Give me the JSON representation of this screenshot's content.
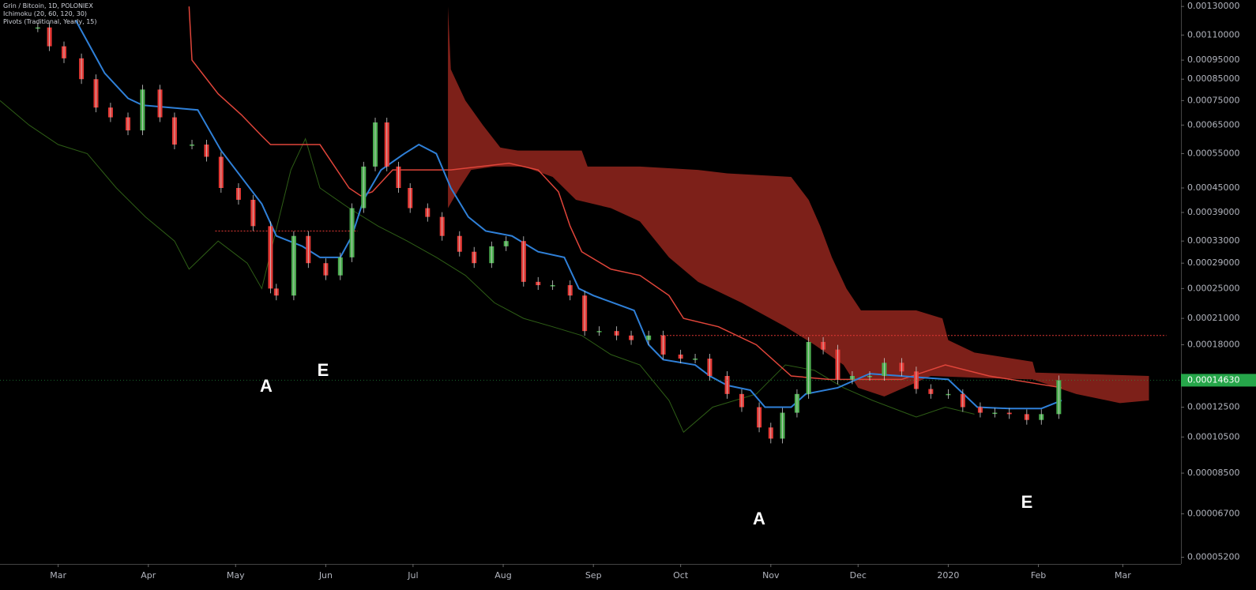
{
  "chart_data": {
    "type": "ichimoku",
    "legend": [
      "Grin / Bitcoin, 1D, POLONIEX",
      "Ichimoku (20, 60, 120, 30)",
      "Pivots (Traditional, Yearly, 15)"
    ],
    "yscale": "log",
    "xlim": [
      -20,
      386
    ],
    "ylim": [
      5e-05,
      0.00135
    ],
    "xticks": [
      {
        "value": 0,
        "label": "Mar"
      },
      {
        "value": 31,
        "label": "Apr"
      },
      {
        "value": 61,
        "label": "May"
      },
      {
        "value": 92,
        "label": "Jun"
      },
      {
        "value": 122,
        "label": "Jul"
      },
      {
        "value": 153,
        "label": "Aug"
      },
      {
        "value": 184,
        "label": "Sep"
      },
      {
        "value": 214,
        "label": "Oct"
      },
      {
        "value": 245,
        "label": "Nov"
      },
      {
        "value": 275,
        "label": "Dec"
      },
      {
        "value": 306,
        "label": "2020"
      },
      {
        "value": 337,
        "label": "Feb"
      },
      {
        "value": 366,
        "label": "Mar"
      }
    ],
    "yticks": [
      {
        "value": 0.0013,
        "label": "0.00130000"
      },
      {
        "value": 0.0011,
        "label": "0.00110000"
      },
      {
        "value": 0.00095,
        "label": "0.00095000"
      },
      {
        "value": 0.00085,
        "label": "0.00085000"
      },
      {
        "value": 0.00075,
        "label": "0.00075000"
      },
      {
        "value": 0.00065,
        "label": "0.00065000"
      },
      {
        "value": 0.00055,
        "label": "0.00055000"
      },
      {
        "value": 0.00045,
        "label": "0.00045000"
      },
      {
        "value": 0.00039,
        "label": "0.00039000"
      },
      {
        "value": 0.00033,
        "label": "0.00033000"
      },
      {
        "value": 0.00029,
        "label": "0.00029000"
      },
      {
        "value": 0.00025,
        "label": "0.00025000"
      },
      {
        "value": 0.00021,
        "label": "0.00021000"
      },
      {
        "value": 0.00018,
        "label": "0.00018000"
      },
      {
        "value": 0.000125,
        "label": "0.00012500"
      },
      {
        "value": 0.000105,
        "label": "0.00010500"
      },
      {
        "value": 8.5e-05,
        "label": "0.00008500"
      },
      {
        "value": 6.7e-05,
        "label": "0.00006700"
      },
      {
        "value": 5.2e-05,
        "label": "0.00005200"
      }
    ],
    "last_price": {
      "value": 0.0001463,
      "label": "0.00014630",
      "color": "#26a64a"
    },
    "price": {
      "up_color": "#4caf50",
      "down_color": "#e53935",
      "x": [
        -7,
        -3,
        2,
        8,
        13,
        18,
        24,
        29,
        35,
        40,
        46,
        51,
        56,
        62,
        67,
        73,
        75,
        81,
        86,
        92,
        97,
        101,
        105,
        109,
        113,
        117,
        121,
        127,
        132,
        138,
        143,
        149,
        154,
        160,
        165,
        170,
        176,
        181,
        186,
        192,
        197,
        203,
        208,
        214,
        219,
        224,
        230,
        235,
        241,
        245,
        249,
        254,
        258,
        263,
        268,
        273,
        279,
        284,
        290,
        295,
        300,
        306,
        311,
        317,
        322,
        327,
        333,
        338,
        344
      ],
      "values": [
        0.00115,
        0.00103,
        0.00096,
        0.00085,
        0.00072,
        0.00068,
        0.00063,
        0.0008,
        0.00068,
        0.00058,
        0.00058,
        0.00054,
        0.00045,
        0.00042,
        0.00036,
        0.00025,
        0.00024,
        0.00034,
        0.00029,
        0.00027,
        0.0003,
        0.0004,
        0.00051,
        0.00066,
        0.00051,
        0.00045,
        0.0004,
        0.00038,
        0.00034,
        0.00031,
        0.00029,
        0.00032,
        0.00033,
        0.00026,
        0.000255,
        0.000255,
        0.00024,
        0.000195,
        0.000195,
        0.00019,
        0.000185,
        0.00019,
        0.00017,
        0.000166,
        0.000166,
        0.00015,
        0.000135,
        0.000125,
        0.000111,
        0.000104,
        0.000121,
        0.000135,
        0.000183,
        0.000175,
        0.000147,
        0.00015,
        0.00015,
        0.000162,
        0.000154,
        0.000139,
        0.000135,
        0.000135,
        0.000125,
        0.000121,
        0.000121,
        0.00012,
        0.000116,
        0.00012,
        0.0001463
      ]
    },
    "series": [
      {
        "color": "#2f80d8",
        "width": 2,
        "x": [
          6,
          16,
          24,
          29,
          48,
          56,
          62,
          70,
          75,
          84,
          90,
          97,
          101,
          105,
          111,
          119,
          124,
          130,
          135,
          141,
          147,
          156,
          165,
          174,
          179,
          184,
          198,
          203,
          208,
          219,
          224,
          230,
          238,
          243,
          252,
          257,
          268,
          279,
          295,
          306,
          316,
          327,
          338,
          345
        ],
        "values": [
          0.0012,
          0.00088,
          0.00076,
          0.00073,
          0.00071,
          0.00056,
          0.00049,
          0.00041,
          0.00034,
          0.00032,
          0.0003,
          0.0003,
          0.00034,
          0.00042,
          0.0005,
          0.00055,
          0.00058,
          0.00055,
          0.00045,
          0.00038,
          0.00035,
          0.00034,
          0.00031,
          0.0003,
          0.00025,
          0.00024,
          0.00022,
          0.00018,
          0.000165,
          0.00016,
          0.00015,
          0.000142,
          0.000138,
          0.000125,
          0.000125,
          0.000135,
          0.00014,
          0.000152,
          0.000149,
          0.000147,
          0.000125,
          0.000124,
          0.000124,
          0.00013
        ]
      },
      {
        "color": "#e0453a",
        "width": 1.5,
        "x": [
          45,
          46,
          55,
          63,
          70,
          73,
          90,
          100,
          104,
          108,
          115,
          135,
          155,
          165,
          172,
          176,
          180,
          190,
          200,
          210,
          215,
          227,
          240,
          252,
          265,
          290,
          305,
          320,
          345
        ],
        "values": [
          0.0013,
          0.00095,
          0.00078,
          0.00069,
          0.00061,
          0.00058,
          0.00058,
          0.00045,
          0.00043,
          0.00044,
          0.0005,
          0.0005,
          0.00052,
          0.0005,
          0.00044,
          0.00036,
          0.00031,
          0.00028,
          0.00027,
          0.00024,
          0.00021,
          0.0002,
          0.00018,
          0.00015,
          0.000147,
          0.000147,
          0.00016,
          0.00015,
          0.00014
        ]
      },
      {
        "color": "#2e5e16",
        "width": 1,
        "x": [
          -20,
          -10,
          0,
          10,
          20,
          30,
          40,
          45,
          55,
          65,
          70,
          80,
          85,
          90,
          100,
          110,
          120,
          130,
          140,
          150,
          160,
          170,
          180,
          190,
          200,
          210,
          215,
          225,
          240,
          250,
          260,
          270,
          280,
          295,
          305,
          315
        ],
        "values": [
          0.00075,
          0.00065,
          0.00058,
          0.00055,
          0.00045,
          0.00038,
          0.00033,
          0.00028,
          0.00033,
          0.00029,
          0.00025,
          0.0005,
          0.0006,
          0.00045,
          0.0004,
          0.00036,
          0.00033,
          0.0003,
          0.00027,
          0.00023,
          0.00021,
          0.0002,
          0.00019,
          0.00017,
          0.00016,
          0.00013,
          0.000108,
          0.000125,
          0.000135,
          0.00016,
          0.000155,
          0.00014,
          0.00013,
          0.000118,
          0.000125,
          0.00012
        ]
      }
    ],
    "cloud": {
      "color": "#8b241c",
      "upper": {
        "x": [
          134,
          135,
          140,
          146,
          152,
          158,
          180,
          182,
          200,
          220,
          230,
          252,
          258,
          262,
          266,
          271,
          276,
          295,
          304,
          306,
          315,
          335,
          336,
          375
        ],
        "values": [
          0.0013,
          0.0009,
          0.00075,
          0.00065,
          0.00057,
          0.00056,
          0.00056,
          0.00051,
          0.00051,
          0.0005,
          0.00049,
          0.00048,
          0.00042,
          0.00036,
          0.0003,
          0.00025,
          0.00022,
          0.00022,
          0.00021,
          0.000185,
          0.000172,
          0.000163,
          0.000153,
          0.00015
        ]
      },
      "lower": {
        "x": [
          134,
          138,
          142,
          150,
          160,
          170,
          178,
          190,
          200,
          210,
          220,
          235,
          250,
          260,
          270,
          275,
          284,
          300,
          320,
          335,
          350,
          365,
          375
        ],
        "values": [
          0.0004,
          0.00045,
          0.0005,
          0.00051,
          0.00051,
          0.00048,
          0.00042,
          0.0004,
          0.00037,
          0.0003,
          0.00026,
          0.00023,
          0.0002,
          0.00018,
          0.00016,
          0.00014,
          0.000133,
          0.00015,
          0.000148,
          0.000147,
          0.000135,
          0.000128,
          0.00013
        ]
      }
    },
    "pivots": [
      {
        "value": 0.00035,
        "x": [
          54,
          103
        ],
        "color": "#e53935"
      },
      {
        "value": 0.00019,
        "x": [
          207,
          381
        ],
        "color": "#e53935"
      }
    ],
    "annotations": [
      "A",
      "E",
      "A",
      "E"
    ]
  }
}
